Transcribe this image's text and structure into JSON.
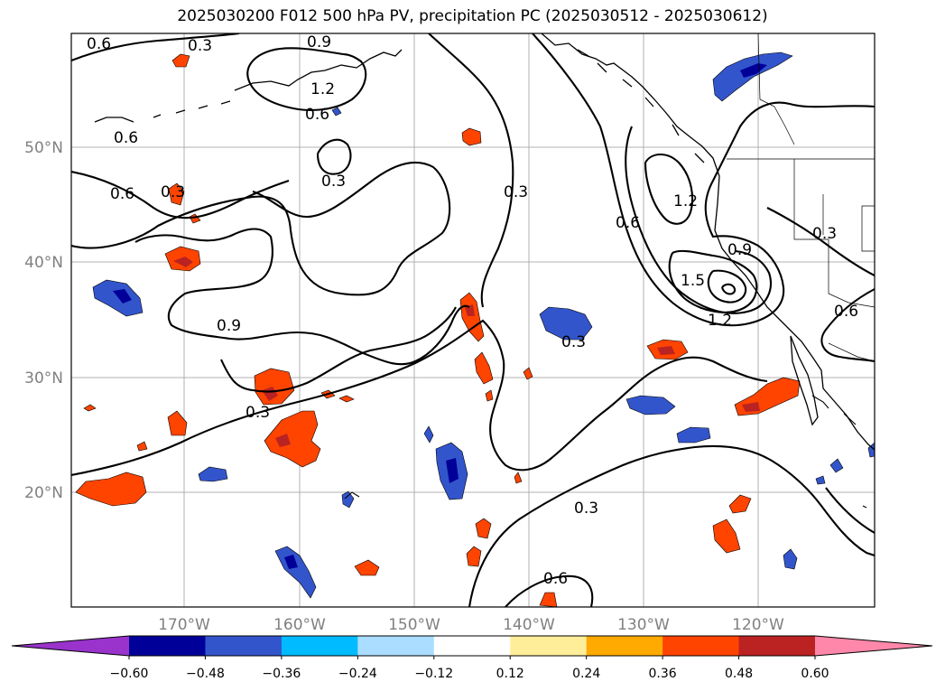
{
  "title": "2025030200 F012 500 hPa PV, precipitation PC (2025030512 - 2025030612)",
  "lat_labels": [
    "50°N",
    "40°N",
    "30°N",
    "20°N"
  ],
  "lon_labels": [
    "170°W",
    "160°W",
    "150°W",
    "140°W",
    "130°W",
    "120°W"
  ],
  "contour_labels": [
    {
      "text": "0.6"
    },
    {
      "text": "0.3"
    },
    {
      "text": "0.9"
    },
    {
      "text": "1.2"
    },
    {
      "text": "0.6"
    },
    {
      "text": "0.6"
    },
    {
      "text": "0.3"
    },
    {
      "text": "0.6"
    },
    {
      "text": "0.3"
    },
    {
      "text": "0.9"
    },
    {
      "text": "0.3"
    },
    {
      "text": "0.3"
    },
    {
      "text": "0.6"
    },
    {
      "text": "1.2"
    },
    {
      "text": "0.9"
    },
    {
      "text": "1.5"
    },
    {
      "text": "1.2"
    },
    {
      "text": "0.3"
    },
    {
      "text": "0.3"
    },
    {
      "text": "0.6"
    },
    {
      "text": "0.3"
    },
    {
      "text": "0.6"
    }
  ],
  "colorbar": {
    "colors": [
      "#9933cc",
      "#000099",
      "#3355cc",
      "#00bbff",
      "#aaddff",
      "#ffffff",
      "#ffee99",
      "#ffaa00",
      "#ff4400",
      "#bb2222",
      "#ff88aa"
    ],
    "ticks": [
      "−0.60",
      "−0.48",
      "−0.36",
      "−0.24",
      "−0.12",
      "0.12",
      "0.24",
      "0.36",
      "0.48",
      "0.60"
    ]
  },
  "colors": {
    "positive_fill": "#ff4400",
    "positive_edge": "#ffaa00",
    "positive_core": "#bb2222",
    "negative_fill": "#3355cc",
    "negative_edge": "#00bbff",
    "negative_core": "#000099",
    "grid": "#b0b0b0",
    "axis_label": "#808080"
  }
}
